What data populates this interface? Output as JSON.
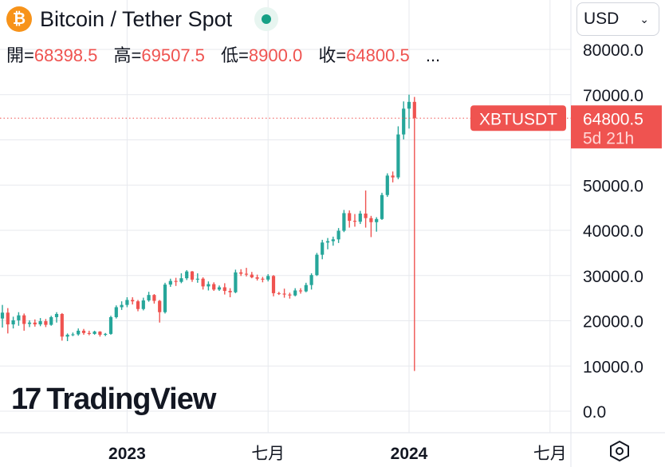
{
  "header": {
    "icon_glyph": "₿",
    "title": "Bitcoin / Tether Spot",
    "ohlc": [
      {
        "label": "開=",
        "value": "68398.5"
      },
      {
        "label": "高=",
        "value": "69507.5"
      },
      {
        "label": "低=",
        "value": "8900.0"
      },
      {
        "label": "收=",
        "value": "64800.5"
      }
    ],
    "more": "..."
  },
  "currency_select": {
    "value": "USD"
  },
  "logo": {
    "mark": "17",
    "text": "TradingView"
  },
  "price_tag": {
    "symbol": "XBTUSDT",
    "price": "64800.5",
    "countdown": "5d 21h"
  },
  "colors": {
    "up": "#26a69a",
    "down": "#ef5350",
    "text": "#131722",
    "grid": "#e7e9ee"
  },
  "chart_data": {
    "type": "candlestick",
    "title": "Bitcoin / Tether Spot",
    "ylim": [
      0,
      80000
    ],
    "y_ticks": [
      0,
      10000,
      20000,
      30000,
      40000,
      50000,
      60000,
      70000,
      80000
    ],
    "y_tick_labels": [
      "0.0",
      "10000.0",
      "20000.0",
      "30000.0",
      "40000.0",
      "50000.0",
      "60000.0",
      "70000.0",
      "80000.0"
    ],
    "x_ticks": [
      {
        "label": "2023",
        "index": 23,
        "bold": true
      },
      {
        "label": "七月",
        "index": 49,
        "bold": false
      },
      {
        "label": "2024",
        "index": 75,
        "bold": true
      },
      {
        "label": "七月",
        "index": 101,
        "bold": false
      }
    ],
    "last_price": 64800.5,
    "candles": [
      [
        20500,
        23500,
        18500,
        21800
      ],
      [
        21800,
        22800,
        17200,
        19200
      ],
      [
        19200,
        20900,
        18300,
        20100
      ],
      [
        20100,
        21900,
        18900,
        21200
      ],
      [
        21200,
        21600,
        17800,
        19300
      ],
      [
        19300,
        20100,
        18600,
        19600
      ],
      [
        19600,
        20300,
        18700,
        19200
      ],
      [
        19200,
        20600,
        18800,
        19900
      ],
      [
        19900,
        20400,
        18600,
        19100
      ],
      [
        19100,
        21100,
        18900,
        20800
      ],
      [
        20800,
        21900,
        19600,
        21500
      ],
      [
        21500,
        21700,
        15600,
        16500
      ],
      [
        16500,
        17200,
        15500,
        16900
      ],
      [
        16900,
        17400,
        16600,
        17000
      ],
      [
        17000,
        18300,
        16700,
        17800
      ],
      [
        17800,
        18200,
        16900,
        17300
      ],
      [
        17300,
        17800,
        16800,
        17100
      ],
      [
        17100,
        17800,
        16900,
        17600
      ],
      [
        17600,
        17700,
        16500,
        16900
      ],
      [
        16900,
        17300,
        16600,
        17100
      ],
      [
        17100,
        21100,
        16900,
        20800
      ],
      [
        20800,
        23400,
        20500,
        23000
      ],
      [
        23000,
        24300,
        22400,
        23500
      ],
      [
        23500,
        25200,
        23000,
        24600
      ],
      [
        24600,
        25200,
        23600,
        24300
      ],
      [
        24300,
        24600,
        22100,
        22600
      ],
      [
        22600,
        25100,
        22300,
        24500
      ],
      [
        24500,
        26400,
        24200,
        25700
      ],
      [
        25700,
        25900,
        23800,
        24400
      ],
      [
        24400,
        24600,
        19600,
        21900
      ],
      [
        21900,
        28400,
        21600,
        28000
      ],
      [
        28000,
        29300,
        27500,
        28800
      ],
      [
        28800,
        29500,
        27700,
        28600
      ],
      [
        28600,
        30500,
        28300,
        29400
      ],
      [
        29400,
        31200,
        29000,
        30900
      ],
      [
        30900,
        31000,
        28600,
        29100
      ],
      [
        29100,
        30500,
        28400,
        29300
      ],
      [
        29300,
        29600,
        26900,
        27600
      ],
      [
        27600,
        28700,
        26700,
        28100
      ],
      [
        28100,
        28500,
        26600,
        26900
      ],
      [
        26900,
        27800,
        26600,
        27400
      ],
      [
        27400,
        28300,
        25800,
        26600
      ],
      [
        26600,
        27200,
        25200,
        26300
      ],
      [
        26300,
        31300,
        26100,
        30700
      ],
      [
        30700,
        31400,
        29900,
        30400
      ],
      [
        30400,
        31700,
        29800,
        30200
      ],
      [
        30200,
        30800,
        29400,
        29600
      ],
      [
        29600,
        30200,
        28900,
        29300
      ],
      [
        29300,
        29700,
        28500,
        29100
      ],
      [
        29100,
        30300,
        28700,
        29900
      ],
      [
        29900,
        30100,
        25400,
        26100
      ],
      [
        26100,
        26400,
        25700,
        26000
      ],
      [
        26000,
        27100,
        25100,
        25800
      ],
      [
        25800,
        26200,
        24900,
        25600
      ],
      [
        25600,
        27200,
        25400,
        26700
      ],
      [
        26700,
        27200,
        26000,
        26500
      ],
      [
        26500,
        28400,
        26300,
        27900
      ],
      [
        27900,
        30500,
        26900,
        30100
      ],
      [
        30100,
        35000,
        29900,
        34600
      ],
      [
        34600,
        37900,
        33600,
        37300
      ],
      [
        37300,
        38300,
        35800,
        37600
      ],
      [
        37600,
        38600,
        36600,
        38000
      ],
      [
        38000,
        40500,
        37200,
        39900
      ],
      [
        39900,
        44500,
        39600,
        43800
      ],
      [
        43800,
        44400,
        40600,
        42100
      ],
      [
        42100,
        43600,
        40800,
        41900
      ],
      [
        41900,
        44300,
        41400,
        43700
      ],
      [
        43700,
        48800,
        40600,
        42700
      ],
      [
        42700,
        43200,
        38500,
        41800
      ],
      [
        41800,
        42900,
        39700,
        42500
      ],
      [
        42500,
        48300,
        42300,
        47800
      ],
      [
        47800,
        52600,
        47400,
        52100
      ],
      [
        52100,
        53000,
        50600,
        51700
      ],
      [
        51700,
        63000,
        51300,
        61200
      ],
      [
        61200,
        68500,
        60100,
        66900
      ],
      [
        66900,
        70000,
        62500,
        68400
      ],
      [
        68400,
        69500,
        8900,
        64800
      ]
    ]
  }
}
